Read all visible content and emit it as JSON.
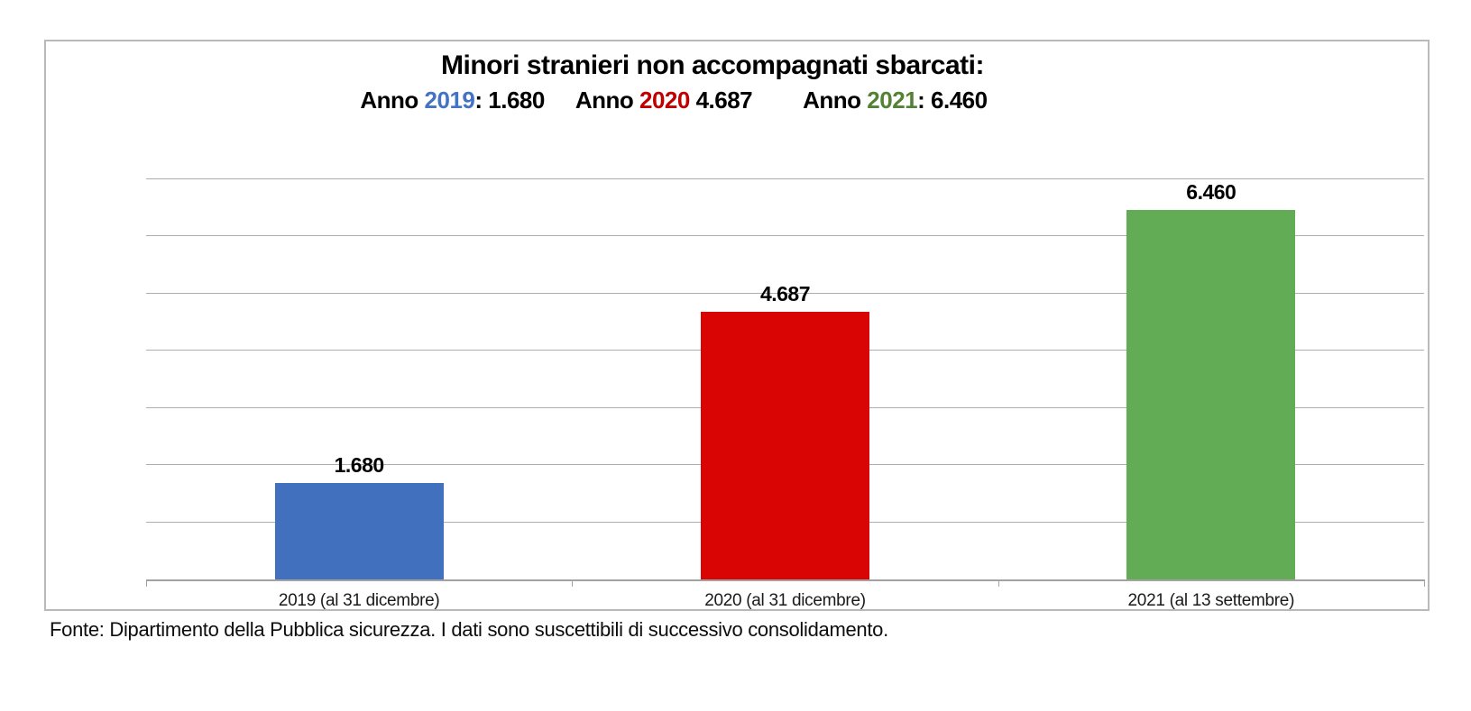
{
  "header": {
    "title": "Minori stranieri non accompagnati sbarcati:",
    "subtitle_groups": [
      {
        "prefix": "Anno ",
        "year": "2019",
        "year_color": "#4472c4",
        "suffix": ": 1.680"
      },
      {
        "prefix": "Anno ",
        "year": "2020",
        "year_color": "#c00000",
        "suffix": " 4.687"
      },
      {
        "prefix": "Anno ",
        "year": "2021",
        "year_color": "#538135",
        "suffix": ": 6.460"
      }
    ]
  },
  "chart_data": {
    "type": "bar",
    "title": "Minori stranieri non accompagnati sbarcati: Anno 2019: 1.680 Anno 2020 4.687 Anno 2021: 6.460",
    "categories": [
      "2019 (al 31 dicembre)",
      "2020 (al 31 dicembre)",
      "2021 (al 13 settembre)"
    ],
    "values": [
      1680,
      4687,
      6460
    ],
    "value_labels": [
      "1.680",
      "4.687",
      "6.460"
    ],
    "bar_colors": [
      "#4070be",
      "#d90404",
      "#62ac55"
    ],
    "xlabel": "",
    "ylabel": "",
    "ylim": [
      0,
      7000
    ],
    "gridline_step": 1000,
    "grid": true,
    "legend_position": "none"
  },
  "footer": {
    "source_note": "Fonte: Dipartimento della Pubblica sicurezza. I dati sono suscettibili di successivo consolidamento."
  },
  "colors": {
    "grid_line": "#aeaeae",
    "axis_line": "#a2a2a2",
    "frame_border": "#b9b9b9",
    "background": "#ffffff"
  }
}
